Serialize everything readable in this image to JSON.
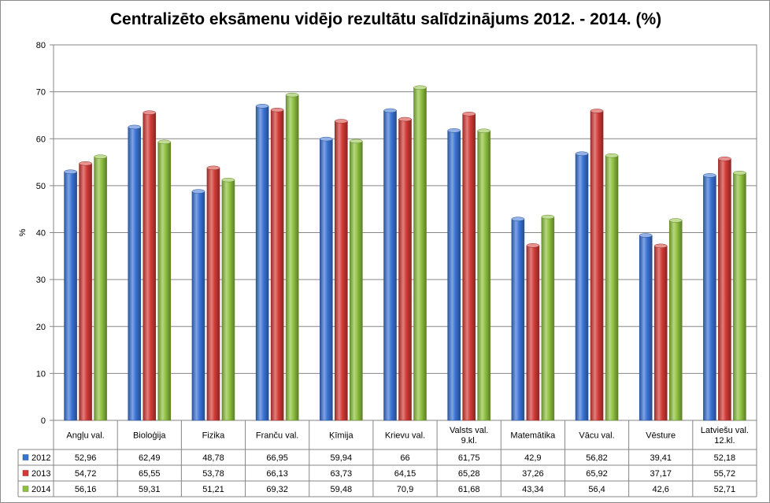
{
  "chart_data": {
    "type": "bar",
    "title": "Centralizēto eksāmenu vidējo rezultātu salīdzinājums 2012. - 2014. (%)",
    "ylabel": "%",
    "xlabel": "",
    "ylim": [
      0,
      80
    ],
    "yticks": [
      "0",
      "10",
      "20",
      "30",
      "40",
      "50",
      "60",
      "70",
      "80"
    ],
    "grid": true,
    "legend": "data-table-left",
    "categories": [
      [
        "Angļu val."
      ],
      [
        "Bioloģija"
      ],
      [
        "Fizika"
      ],
      [
        "Franču val."
      ],
      [
        "Ķīmija"
      ],
      [
        "Krievu val."
      ],
      [
        "Valsts val.",
        "9.kl."
      ],
      [
        "Matemātika"
      ],
      [
        "Vācu val."
      ],
      [
        "Vēsture"
      ],
      [
        "Latviešu val.",
        "12.kl."
      ]
    ],
    "series": [
      {
        "name": "2012",
        "color": "#3a73d6",
        "values": [
          52.96,
          62.49,
          48.78,
          66.95,
          59.94,
          66,
          61.75,
          42.9,
          56.82,
          39.41,
          52.18
        ],
        "labels": [
          "52,96",
          "62,49",
          "48,78",
          "66,95",
          "59,94",
          "66",
          "61,75",
          "42,9",
          "56,82",
          "39,41",
          "52,18"
        ]
      },
      {
        "name": "2013",
        "color": "#d33a36",
        "values": [
          54.72,
          65.55,
          53.78,
          66.13,
          63.73,
          64.15,
          65.28,
          37.26,
          65.92,
          37.17,
          55.72
        ],
        "labels": [
          "54,72",
          "65,55",
          "53,78",
          "66,13",
          "63,73",
          "64,15",
          "65,28",
          "37,26",
          "65,92",
          "37,17",
          "55,72"
        ]
      },
      {
        "name": "2014",
        "color": "#8fc13f",
        "values": [
          56.16,
          59.31,
          51.21,
          69.32,
          59.48,
          70.9,
          61.68,
          43.34,
          56.4,
          42.6,
          52.71
        ],
        "labels": [
          "56,16",
          "59,31",
          "51,21",
          "69,32",
          "59,48",
          "70,9",
          "61,68",
          "43,34",
          "56,4",
          "42,6",
          "52,71"
        ]
      }
    ]
  }
}
